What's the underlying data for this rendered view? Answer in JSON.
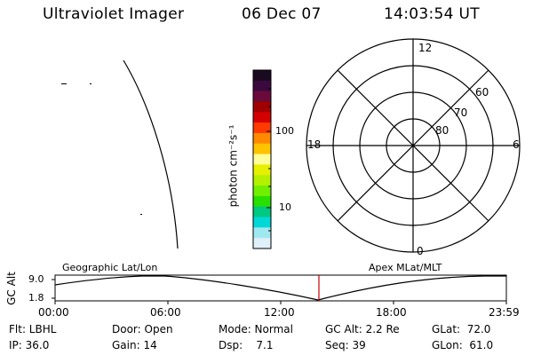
{
  "header": {
    "instrument": "Ultraviolet Imager",
    "date": "06 Dec 07",
    "time": "14:03:54 UT"
  },
  "colorbar": {
    "unit_label": "photon cm⁻²s⁻¹",
    "ticks": [
      "100",
      "10"
    ],
    "colors": [
      "#1a0a20",
      "#3a0a3e",
      "#6a0a3a",
      "#a00000",
      "#d40000",
      "#ff3a00",
      "#ff8a00",
      "#ffc400",
      "#ffff99",
      "#e6f000",
      "#b4f000",
      "#70f000",
      "#28e000",
      "#00c880",
      "#00d8d8",
      "#a0e8f0",
      "#e0f0f8"
    ]
  },
  "polar_plot": {
    "top_label": "12",
    "bottom_label": "0",
    "left_label": "18",
    "right_label": "6",
    "lat_labels": [
      "60",
      "70",
      "80"
    ]
  },
  "timeline": {
    "axis_label": "GC Alt",
    "left_caption": "Geographic Lat/Lon",
    "right_caption": "Apex MLat/MLT",
    "y_ticks": [
      "9.0",
      "1.8"
    ],
    "x_ticks": [
      "00:00",
      "06:00",
      "12:00",
      "18:00",
      "23:59"
    ]
  },
  "status": {
    "flt": "Flt: LBHL",
    "ip": "IP: 36.0",
    "door": "Door: Open",
    "gain": "Gain: 14",
    "mode": "Mode: Normal",
    "dsp": "Dsp:    7.1",
    "gc_alt": "GC Alt: 2.2 Re",
    "seq": "Seq: 39",
    "glat": "GLat:  72.0",
    "glon": "GLon:  61.0"
  }
}
